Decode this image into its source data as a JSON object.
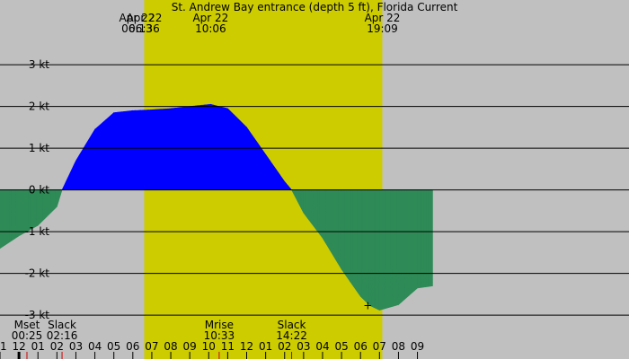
{
  "chart_data": {
    "type": "area",
    "title": "St. Andrew Bay entrance (depth 5 ft), Florida Current",
    "x_unit": "hour of day (Apr 22)",
    "xlim": [
      -1.0,
      32.15
    ],
    "ylim": [
      -4.05,
      4.55
    ],
    "daylight_interval": [
      6.6,
      19.15
    ],
    "y_ticks": [
      {
        "value": 3,
        "label": "3 kt"
      },
      {
        "value": 2,
        "label": "2 kt"
      },
      {
        "value": 1,
        "label": "1 kt"
      },
      {
        "value": 0,
        "label": "0 kt"
      },
      {
        "value": -1,
        "label": "-1 kt"
      },
      {
        "value": -2,
        "label": "-2 kt"
      },
      {
        "value": -3,
        "label": "-3 kt"
      }
    ],
    "x_ticks": [
      {
        "value": -1,
        "label": "11"
      },
      {
        "value": 0,
        "label": "12"
      },
      {
        "value": 1,
        "label": "01"
      },
      {
        "value": 2,
        "label": "02"
      },
      {
        "value": 3,
        "label": "03"
      },
      {
        "value": 4,
        "label": "04"
      },
      {
        "value": 5,
        "label": "05"
      },
      {
        "value": 6,
        "label": "06"
      },
      {
        "value": 7,
        "label": "07"
      },
      {
        "value": 8,
        "label": "08"
      },
      {
        "value": 9,
        "label": "09"
      },
      {
        "value": 10,
        "label": "10"
      },
      {
        "value": 11,
        "label": "11"
      },
      {
        "value": 12,
        "label": "12"
      },
      {
        "value": 13,
        "label": "01"
      },
      {
        "value": 14,
        "label": "02"
      },
      {
        "value": 15,
        "label": "03"
      },
      {
        "value": 16,
        "label": "04"
      },
      {
        "value": 17,
        "label": "05"
      },
      {
        "value": 18,
        "label": "06"
      },
      {
        "value": 19,
        "label": "07"
      },
      {
        "value": 20,
        "label": "08"
      },
      {
        "value": 21,
        "label": "09"
      }
    ],
    "series": [
      {
        "x": [
          -1.0,
          0.0,
          1.0,
          2.0,
          2.27,
          3.0,
          4.0,
          5.0,
          6.0,
          7.0,
          8.0,
          9.0,
          10.1,
          11.0,
          12.0,
          13.0,
          14.0,
          14.37,
          15.0,
          16.0,
          17.0,
          18.0,
          18.5,
          19.0,
          20.0,
          21.0,
          21.8
        ],
        "y": [
          -1.4,
          -1.1,
          -0.85,
          -0.4,
          0.0,
          0.7,
          1.45,
          1.85,
          1.9,
          1.92,
          1.95,
          2.0,
          2.05,
          1.95,
          1.5,
          0.85,
          0.2,
          0.0,
          -0.55,
          -1.15,
          -1.9,
          -2.55,
          -2.77,
          -2.88,
          -2.75,
          -2.35,
          -2.3
        ]
      }
    ],
    "top_annotations": [
      {
        "x": 6.22,
        "date": "Apr 22",
        "time": "06:13"
      },
      {
        "x": 6.6,
        "date": "Apr 22",
        "time": "06:36"
      },
      {
        "x": 10.1,
        "date": "Apr 22",
        "time": "10:06"
      },
      {
        "x": 19.15,
        "date": "Apr 22",
        "time": "19:09"
      }
    ],
    "bottom_events": [
      {
        "x": 0.42,
        "name": "Mset",
        "time": "00:25"
      },
      {
        "x": 2.27,
        "name": "Slack",
        "time": "02:16"
      },
      {
        "x": 10.55,
        "name": "Mrise",
        "time": "10:33"
      },
      {
        "x": 14.37,
        "name": "Slack",
        "time": "14:22"
      }
    ],
    "marker": {
      "x": 18.38,
      "y": -2.77,
      "symbol": "+"
    },
    "colors": {
      "background": "#c0c0c0",
      "daylight": "#cccc00",
      "flood": "#0000ff",
      "ebb": "#2e8b57",
      "event_tick": "#cc0000",
      "gridline": "#000000"
    }
  }
}
